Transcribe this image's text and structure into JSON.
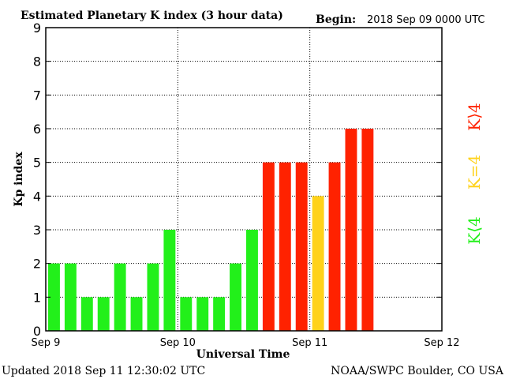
{
  "header": {
    "title": "Estimated Planetary K index (3 hour data)",
    "begin_label": "Begin:",
    "begin_value": "2018 Sep 09 0000 UTC"
  },
  "footer": {
    "updated": "Updated 2018 Sep 11 12:30:02 UTC",
    "credit": "NOAA/SWPC Boulder, CO USA"
  },
  "legend": {
    "high": "K⟩4",
    "equal": "K=4",
    "low": "K⟨4"
  },
  "colors": {
    "low": "#22f01a",
    "equal": "#ffd21a",
    "high": "#ff2200",
    "grid": "#000000"
  },
  "chart_data": {
    "type": "bar",
    "title": "Estimated Planetary K index (3 hour data)",
    "xlabel": "Universal Time",
    "ylabel": "Kp index",
    "ylim": [
      0,
      9
    ],
    "yticks": [
      0,
      1,
      2,
      3,
      4,
      5,
      6,
      7,
      8,
      9
    ],
    "x_ticks": [
      "Sep 9",
      "Sep 10",
      "Sep 11",
      "Sep 12"
    ],
    "slots_total": 24,
    "interval_hours": 3,
    "grid": true,
    "values": [
      2,
      2,
      1,
      1,
      2,
      1,
      2,
      3,
      1,
      1,
      1,
      2,
      3,
      5,
      5,
      5,
      4,
      5,
      6,
      6
    ]
  }
}
